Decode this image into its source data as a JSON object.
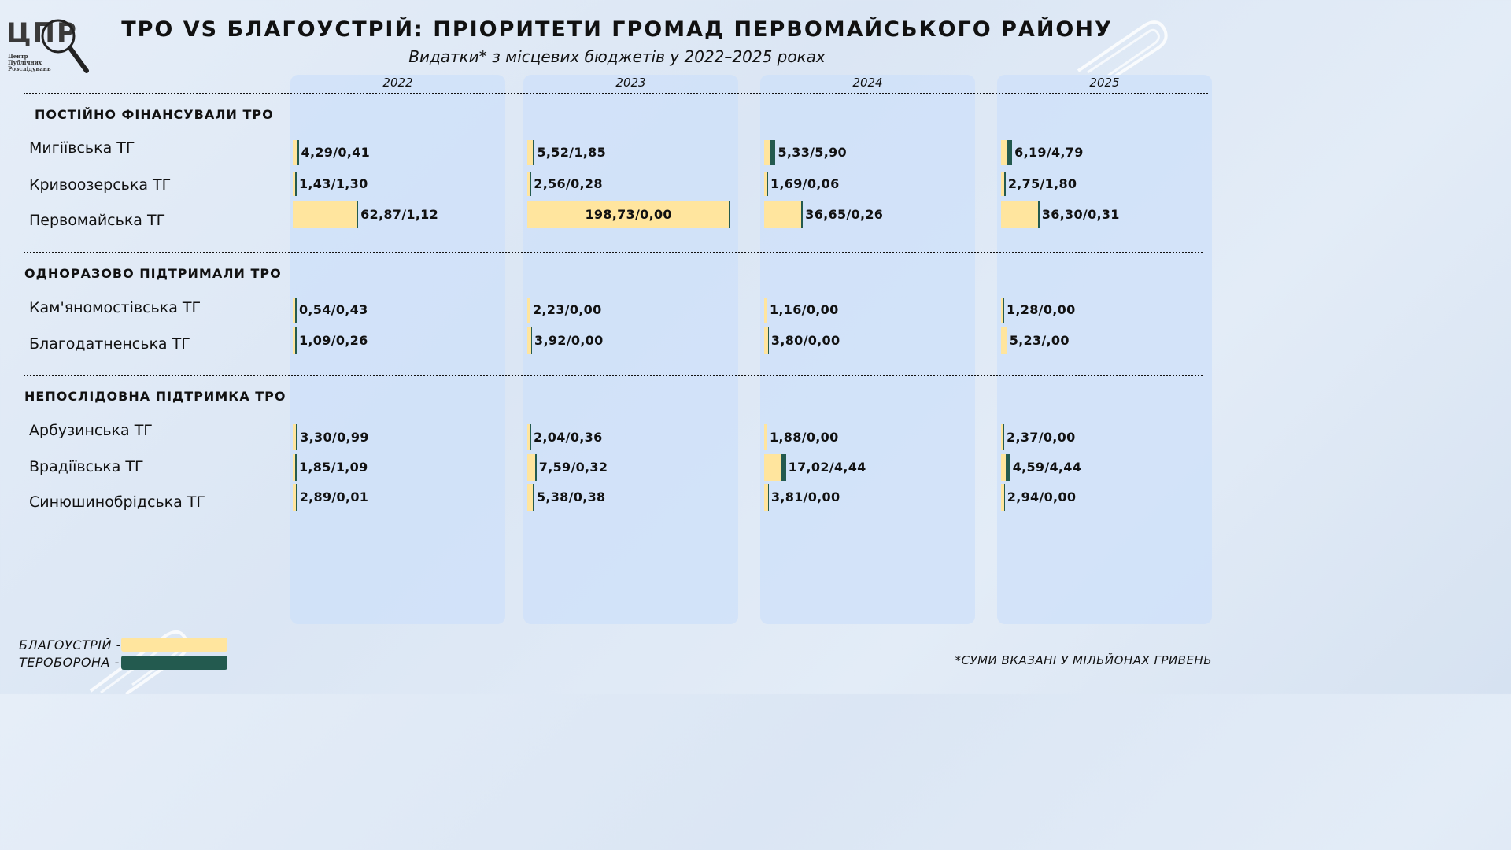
{
  "logo": {
    "text": "ЦПР",
    "sub": [
      "Центр",
      "Публічних",
      "Розслідувань"
    ]
  },
  "title": "ТРО VS БЛАГОУСТРІЙ: ПРІОРИТЕТИ ГРОМАД ПЕРВОМАЙСЬКОГО РАЙОНУ",
  "subtitle": "Видатки* з місцевих бюджетів у 2022–2025 роках",
  "footnote": "*СУМИ ВКАЗАНІ У МІЛЬЙОНАХ ГРИВЕНЬ",
  "legend": [
    {
      "label": "БЛАГОУСТРІЙ -",
      "color": "#ffe59e"
    },
    {
      "label": "ТЕРОБОРОНА -",
      "color": "#235a4f"
    }
  ],
  "colors": {
    "blagoustriy": "#ffe59e",
    "teroborona": "#235a4f",
    "panel": "#cde0fa"
  },
  "chart_data": {
    "type": "bar",
    "orientation": "horizontal",
    "stacked": true,
    "title": "ТРО VS БЛАГОУСТРІЙ: ПРІОРИТЕТИ ГРОМАД ПЕРВОМАЙСЬКОГО РАЙОНУ",
    "subtitle": "Видатки* з місцевих бюджетів у 2022–2025 роках",
    "years": [
      "2022",
      "2023",
      "2024",
      "2025"
    ],
    "series": [
      {
        "name": "БЛАГОУСТРІЙ",
        "color": "#ffe59e"
      },
      {
        "name": "ТЕРОБОРОНА",
        "color": "#235a4f"
      }
    ],
    "groups": [
      {
        "name": "ПОСТІЙНО ФІНАНСУВАЛИ ТРО",
        "rows": [
          {
            "name": "Мигіївська ТГ",
            "values": [
              [
                4.29,
                0.41
              ],
              [
                5.52,
                1.85
              ],
              [
                5.33,
                5.9
              ],
              [
                6.19,
                4.79
              ]
            ],
            "labels": [
              "4,29/0,41",
              "5,52/1,85",
              "5,33/5,90",
              "6,19/4,79"
            ]
          },
          {
            "name": "Кривоозерська ТГ",
            "values": [
              [
                1.43,
                1.3
              ],
              [
                2.56,
                0.28
              ],
              [
                1.69,
                0.06
              ],
              [
                2.75,
                1.8
              ]
            ],
            "labels": [
              "1,43/1,30",
              "2,56/0,28",
              "1,69/0,06",
              "2,75/1,80"
            ]
          },
          {
            "name": "Первомайська ТГ",
            "values": [
              [
                62.87,
                1.12
              ],
              [
                198.73,
                0.0
              ],
              [
                36.65,
                0.26
              ],
              [
                36.3,
                0.31
              ]
            ],
            "labels": [
              "62,87/1,12",
              "198,73/0,00",
              "36,65/0,26",
              "36,30/0,31"
            ]
          }
        ]
      },
      {
        "name": "ОДНОРАЗОВО ПІДТРИМАЛИ ТРО",
        "rows": [
          {
            "name": "Кам'яномостівська ТГ",
            "values": [
              [
                0.54,
                0.43
              ],
              [
                2.23,
                0.0
              ],
              [
                1.16,
                0.0
              ],
              [
                1.28,
                0.0
              ]
            ],
            "labels": [
              "0,54/0,43",
              "2,23/0,00",
              "1,16/0,00",
              "1,28/0,00"
            ]
          },
          {
            "name": "Благодатненська ТГ",
            "values": [
              [
                1.09,
                0.26
              ],
              [
                3.92,
                0.0
              ],
              [
                3.8,
                0.0
              ],
              [
                5.23,
                0.0
              ]
            ],
            "labels": [
              "1,09/0,26",
              "3,92/0,00",
              "3,80/0,00",
              "5,23/,00"
            ]
          }
        ]
      },
      {
        "name": "НЕПОСЛІДОВНА ПІДТРИМКА ТРО",
        "rows": [
          {
            "name": "Арбузинська ТГ",
            "values": [
              [
                3.3,
                0.99
              ],
              [
                2.04,
                0.36
              ],
              [
                1.88,
                0.0
              ],
              [
                2.37,
                0.0
              ]
            ],
            "labels": [
              "3,30/0,99",
              "2,04/0,36",
              "1,88/0,00",
              "2,37/0,00"
            ]
          },
          {
            "name": "Врадіївська ТГ",
            "values": [
              [
                1.85,
                1.09
              ],
              [
                7.59,
                0.32
              ],
              [
                17.02,
                4.44
              ],
              [
                4.59,
                4.44
              ]
            ],
            "labels": [
              "1,85/1,09",
              "7,59/0,32",
              "17,02/4,44",
              "4,59/4,44"
            ]
          },
          {
            "name": "Синюшинобрідська ТГ",
            "values": [
              [
                2.89,
                0.01
              ],
              [
                5.38,
                0.38
              ],
              [
                3.81,
                0.0
              ],
              [
                2.94,
                0.0
              ]
            ],
            "labels": [
              "2,89/0,01",
              "5,38/0,38",
              "3,81/0,00",
              "2,94/0,00"
            ]
          }
        ]
      }
    ]
  }
}
